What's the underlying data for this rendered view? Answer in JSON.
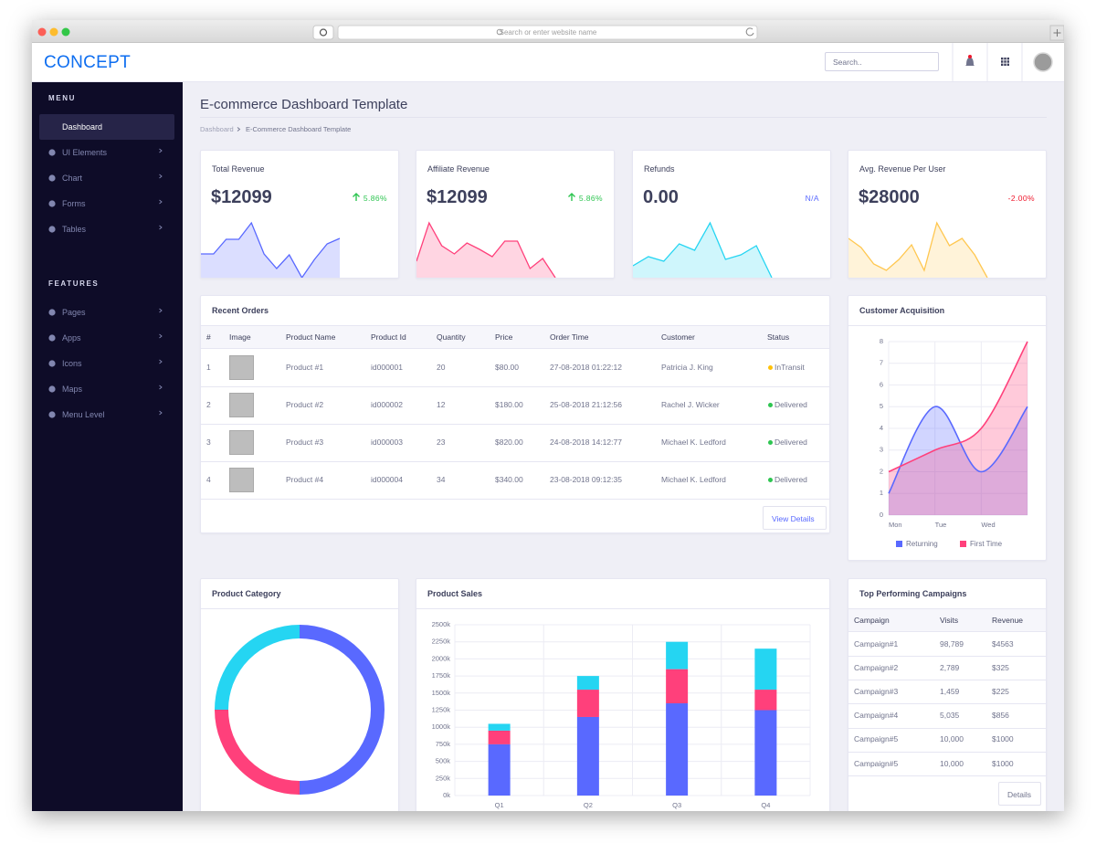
{
  "browser": {
    "address": "Search or enter website name"
  },
  "header": {
    "logo": "CONCEPT",
    "search_placeholder": "Search.."
  },
  "sidebar": [
    {
      "title": "MENU",
      "items": [
        "Dashboard",
        "UI Elements",
        "Chart",
        "Forms",
        "Tables"
      ]
    },
    {
      "title": "FEATURES",
      "items": [
        "Pages",
        "Apps",
        "Icons",
        "Maps",
        "Menu Level"
      ]
    }
  ],
  "page": {
    "title": "E-commerce Dashboard Template",
    "breadcrumb": [
      "Dashboard",
      "E-Commerce Dashboard Template"
    ]
  },
  "kpis": [
    {
      "title": "Total Revenue",
      "value": "$12099",
      "change": "5.86%",
      "change_color": "#2ec551",
      "trend": "up",
      "chart": {
        "type": "area",
        "color": "#5969ff",
        "values": [
          26,
          26,
          42,
          42,
          60,
          26,
          10,
          25,
          0,
          20,
          37,
          43
        ]
      }
    },
    {
      "title": "Affiliate Revenue",
      "value": "$12099",
      "change": "5.86%",
      "change_color": "#2ec551",
      "trend": "up",
      "chart": {
        "type": "area",
        "color": "#ff407b",
        "values": [
          18,
          60,
          35,
          26,
          38,
          31,
          23,
          40,
          40,
          10,
          21,
          0
        ]
      }
    },
    {
      "title": "Refunds",
      "value": "0.00",
      "change": "N/A",
      "change_color": "#5969ff",
      "chart": {
        "type": "area",
        "color": "#25d5f2",
        "values": [
          13,
          23,
          18,
          37,
          30,
          60,
          20,
          25,
          35,
          0
        ]
      }
    },
    {
      "title": "Avg. Revenue Per User",
      "value": "$28000",
      "change": "-2.00%",
      "change_color": "#ef172c",
      "chart": {
        "type": "area",
        "color": "#ffc750",
        "values": [
          43,
          33,
          15,
          8,
          20,
          36,
          8,
          60,
          35,
          43,
          25,
          0
        ]
      }
    }
  ],
  "recent_orders": {
    "title": "Recent Orders",
    "columns": [
      "#",
      "Image",
      "Product Name",
      "Product Id",
      "Quantity",
      "Price",
      "Order Time",
      "Customer",
      "Status"
    ],
    "rows": [
      {
        "no": 1,
        "product": "Product #1",
        "id": "id000001",
        "qty": 20,
        "price": "$80.00",
        "time": "27-08-2018 01:22:12",
        "customer": "Patricia J. King",
        "status": "InTransit",
        "status_color": "#ffc108"
      },
      {
        "no": 2,
        "product": "Product #2",
        "id": "id000002",
        "qty": 12,
        "price": "$180.00",
        "time": "25-08-2018 21:12:56",
        "customer": "Rachel J. Wicker",
        "status": "Delivered",
        "status_color": "#2ec551"
      },
      {
        "no": 3,
        "product": "Product #3",
        "id": "id000003",
        "qty": 23,
        "price": "$820.00",
        "time": "24-08-2018 14:12:77",
        "customer": "Michael K. Ledford",
        "status": "Delivered",
        "status_color": "#2ec551"
      },
      {
        "no": 4,
        "product": "Product #4",
        "id": "id000004",
        "qty": 34,
        "price": "$340.00",
        "time": "23-08-2018 09:12:35",
        "customer": "Michael K. Ledford",
        "status": "Delivered",
        "status_color": "#2ec551"
      }
    ],
    "button": "View Details"
  },
  "customer_acquisition": {
    "title": "Customer Acquisition",
    "chart": {
      "type": "area",
      "smooth": true,
      "categories": [
        "Mon",
        "Tue",
        "Wed",
        null
      ],
      "series": [
        {
          "name": "Returning",
          "color": "#5969ff",
          "values": [
            1,
            5,
            2,
            5
          ]
        },
        {
          "name": "First Time",
          "color": "#ff407b",
          "values": [
            2,
            3,
            4,
            8
          ]
        }
      ],
      "ylim": [
        0,
        8
      ],
      "yticks": [
        0,
        1,
        2,
        3,
        4,
        5,
        6,
        7,
        8
      ],
      "grid": true
    }
  },
  "product_category": {
    "title": "Product Category",
    "chart": {
      "type": "doughnut",
      "values": [
        50,
        25,
        25
      ],
      "colors": [
        "#5969ff",
        "#ff407b",
        "#25d5f2"
      ]
    }
  },
  "product_sales": {
    "title": "Product Sales",
    "chart": {
      "type": "bar",
      "stacked": true,
      "categories": [
        "Q1",
        "Q2",
        "Q3",
        "Q4"
      ],
      "series": [
        {
          "color": "#5969ff",
          "values": [
            750000,
            1150000,
            1350000,
            1250000
          ]
        },
        {
          "color": "#ff407b",
          "values": [
            200000,
            400000,
            500000,
            300000
          ]
        },
        {
          "color": "#25d5f2",
          "values": [
            100000,
            200000,
            400000,
            600000
          ]
        }
      ],
      "ylim": [
        0,
        2500000
      ],
      "yticks": [
        {
          "value": 0,
          "label": "0k"
        },
        {
          "value": 250000,
          "label": "250k"
        },
        {
          "value": 500000,
          "label": "500k"
        },
        {
          "value": 750000,
          "label": "750k"
        },
        {
          "value": 1000000,
          "label": "1000k"
        },
        {
          "value": 1250000,
          "label": "1250k"
        },
        {
          "value": 1500000,
          "label": "1500k"
        },
        {
          "value": 1750000,
          "label": "1750k"
        },
        {
          "value": 2000000,
          "label": "2000k"
        },
        {
          "value": 2250000,
          "label": "2250k"
        },
        {
          "value": 2500000,
          "label": "2500k"
        }
      ],
      "grid": true
    }
  },
  "campaigns": {
    "title": "Top Performing Campaigns",
    "columns": [
      "Campaign",
      "Visits",
      "Revenue"
    ],
    "rows": [
      [
        "Campaign#1",
        "98,789",
        "$4563"
      ],
      [
        "Campaign#2",
        "2,789",
        "$325"
      ],
      [
        "Campaign#3",
        "1,459",
        "$225"
      ],
      [
        "Campaign#4",
        "5,035",
        "$856"
      ],
      [
        "Campaign#5",
        "10,000",
        "$1000"
      ],
      [
        "Campaign#5",
        "10,000",
        "$1000"
      ]
    ],
    "button": "Details"
  }
}
